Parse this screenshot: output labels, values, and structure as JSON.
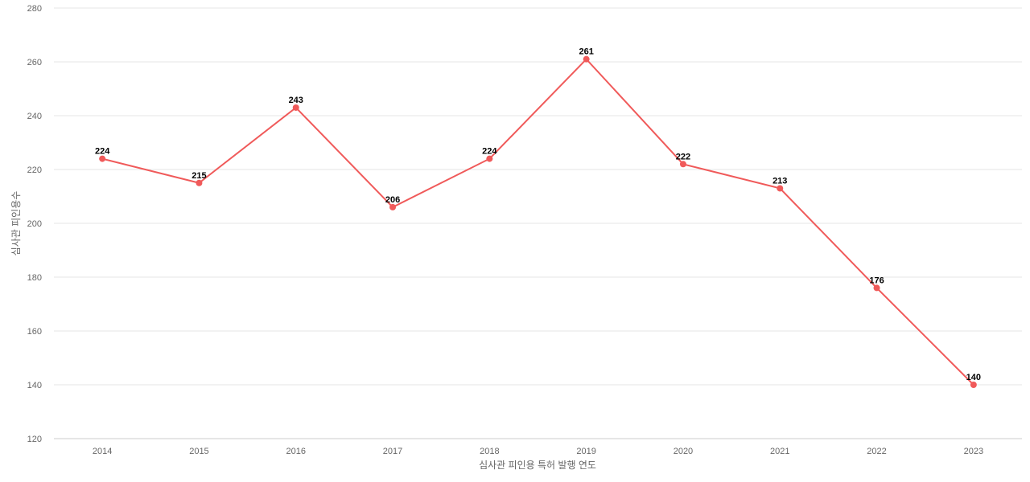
{
  "chart_data": {
    "type": "line",
    "title": "",
    "xlabel": "심사관 피인용 특허 발행 연도",
    "ylabel": "심사관 피인용수",
    "categories": [
      "2014",
      "2015",
      "2016",
      "2017",
      "2018",
      "2019",
      "2020",
      "2021",
      "2022",
      "2023"
    ],
    "series": [
      {
        "values": [
          224,
          215,
          243,
          206,
          224,
          261,
          222,
          213,
          176,
          140
        ],
        "color": "#f05a5a"
      }
    ],
    "ylim": [
      120,
      280
    ],
    "yticks": [
      120,
      140,
      160,
      180,
      200,
      220,
      240,
      260,
      280
    ],
    "grid": true,
    "legend": "none",
    "data_labels": true
  }
}
